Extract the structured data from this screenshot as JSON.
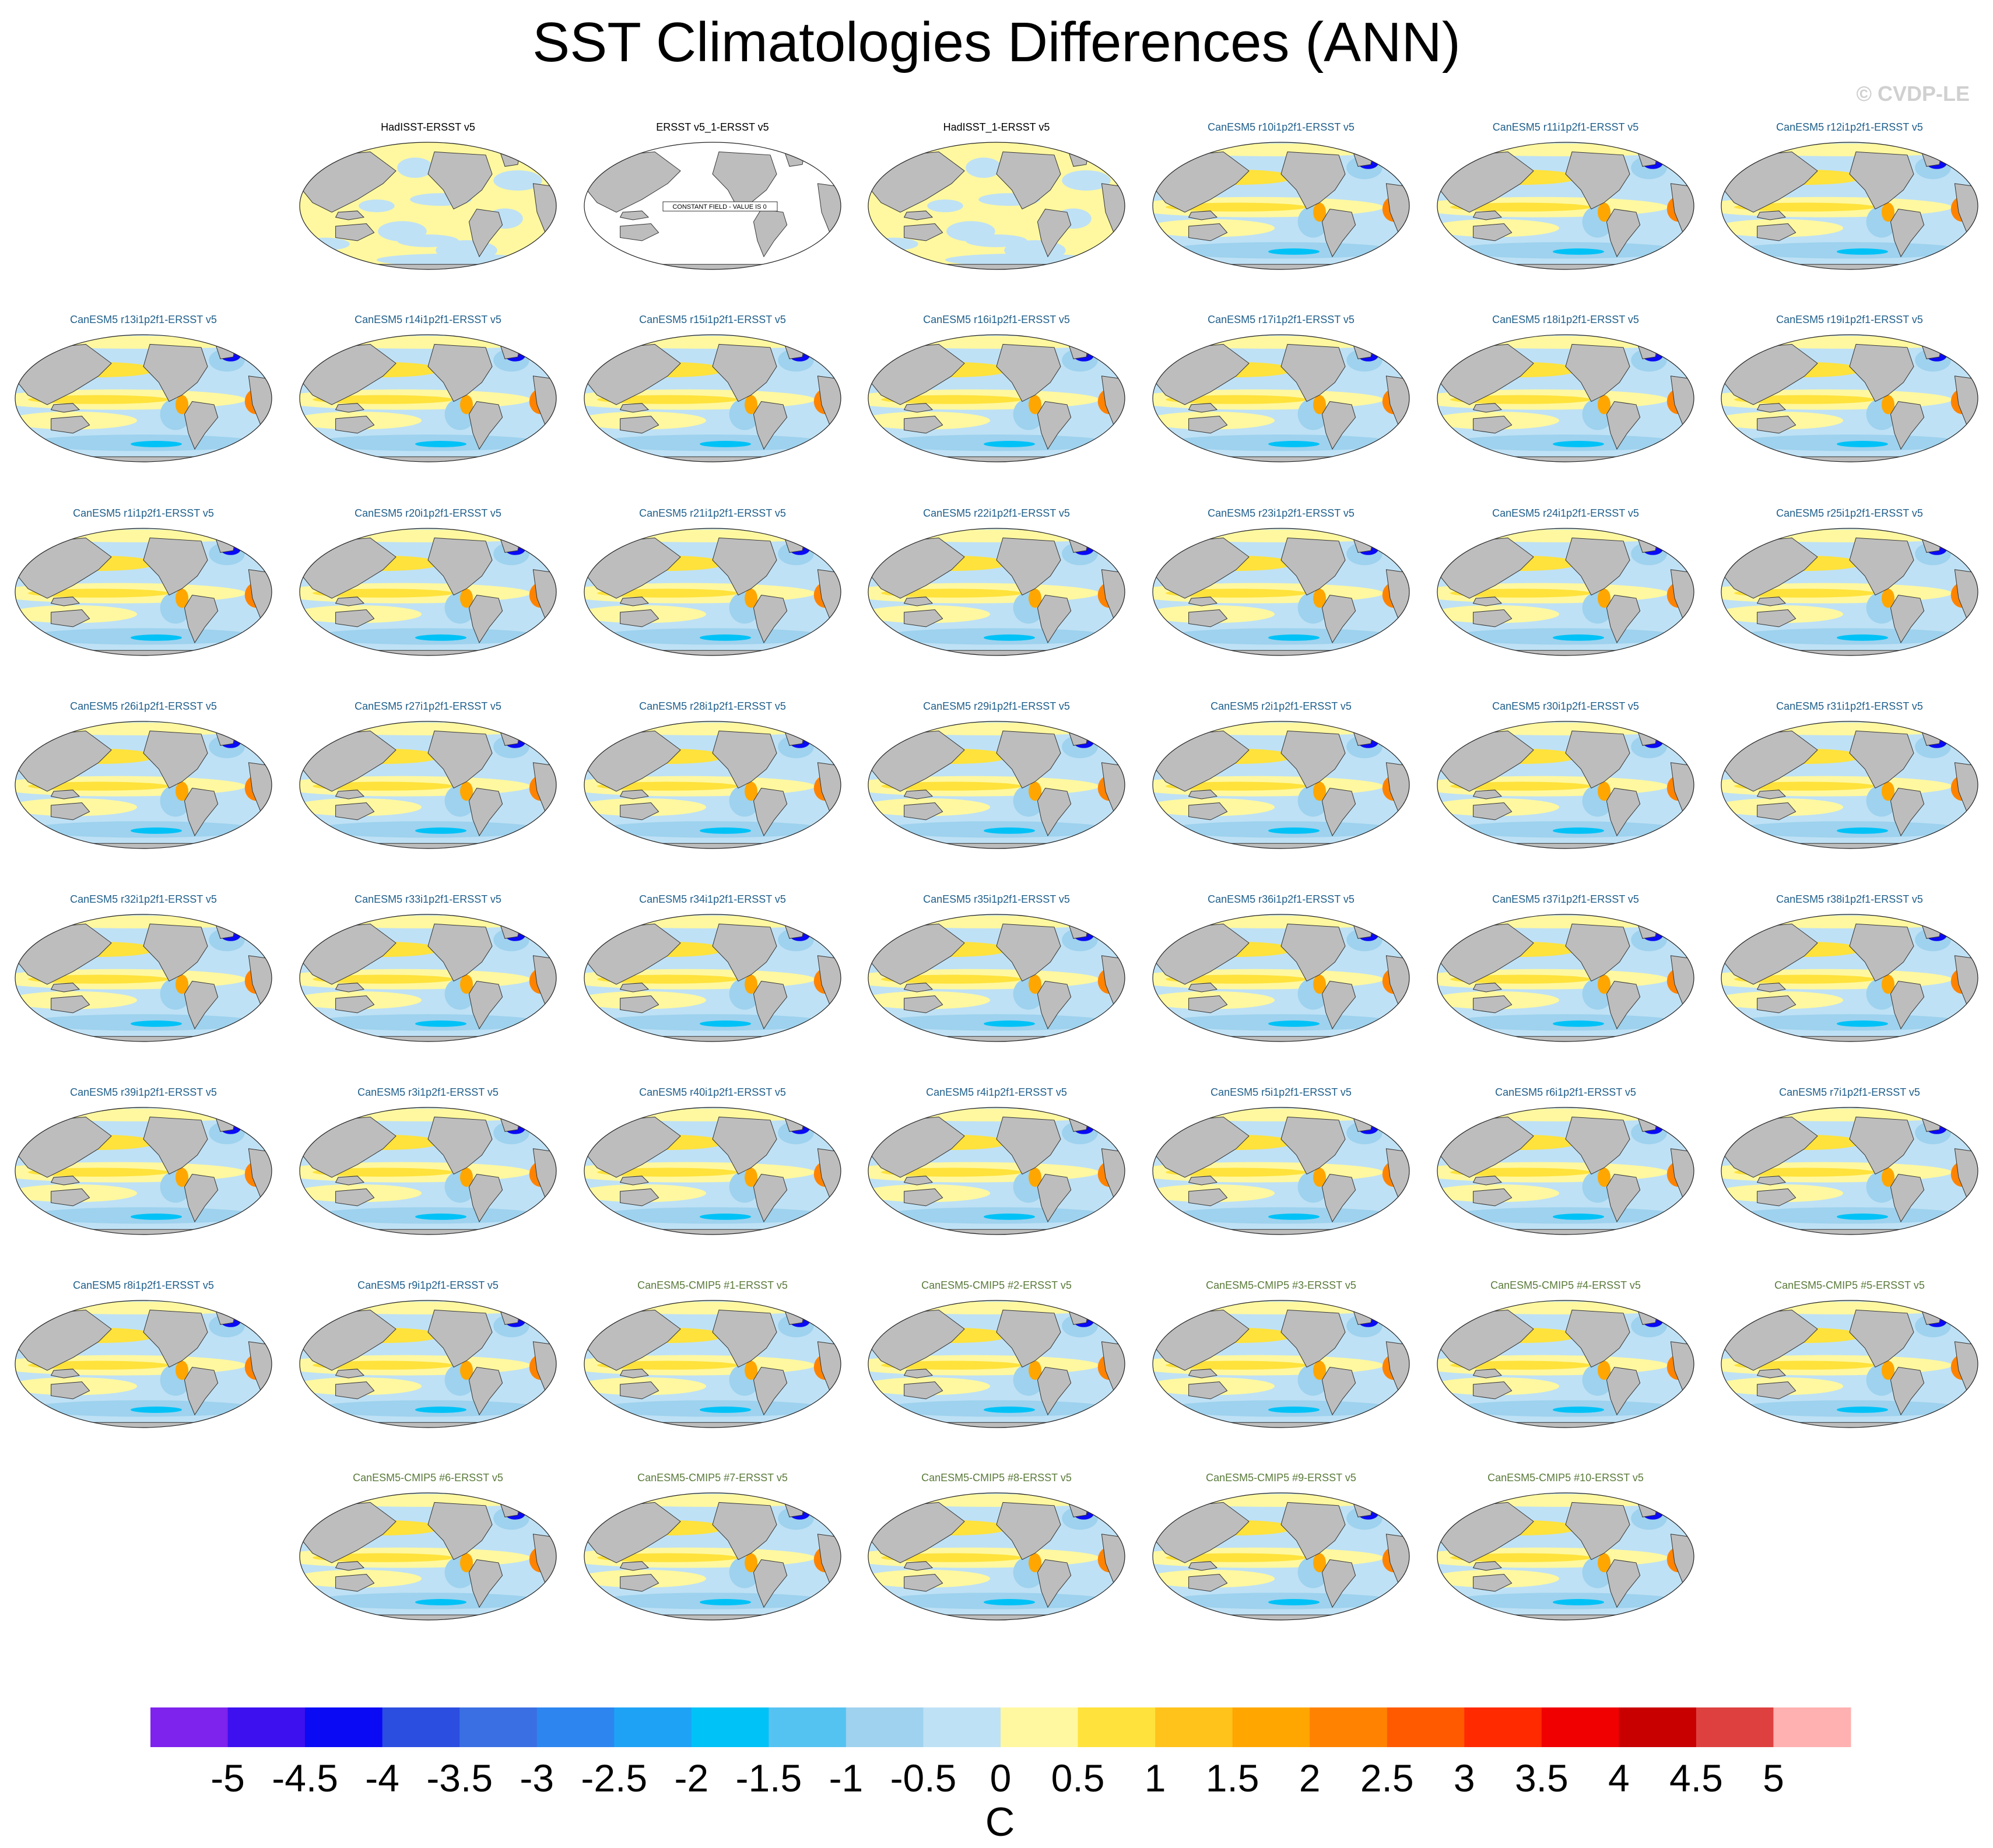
{
  "title": "SST Climatologies Differences (ANN)",
  "copyright": "© CVDP-LE",
  "constant_field_note": "CONSTANT FIELD - VALUE IS 0",
  "colors": {
    "obs_title": "#000000",
    "model_title": "#1f5f8b",
    "cmip_title": "#5a7a3a",
    "land": "#bdbdbd",
    "coast": "#333333"
  },
  "chart_data": {
    "type": "heatmap",
    "colorbar": {
      "ticks": [
        "-5",
        "-4.5",
        "-4",
        "-3.5",
        "-3",
        "-2.5",
        "-2",
        "-1.5",
        "-1",
        "-0.5",
        "0",
        "0.5",
        "1",
        "1.5",
        "2",
        "2.5",
        "3",
        "3.5",
        "4",
        "4.5",
        "5"
      ],
      "colors": [
        "#7e22ee",
        "#3d10f0",
        "#0a0af5",
        "#2b4de0",
        "#3a6fe3",
        "#2d85f0",
        "#1ea2f5",
        "#00c2f7",
        "#55c3f2",
        "#9ed2ee",
        "#bfe1f5",
        "#fff8a0",
        "#ffe23b",
        "#ffc31c",
        "#ffa600",
        "#ff8300",
        "#ff5a00",
        "#ff2a00",
        "#f00000",
        "#c80000",
        "#de4040",
        "#ffb0b0"
      ],
      "label": "C"
    },
    "panels": [
      [
        {
          "slot": 1,
          "title": "HadISST-ERSST v5",
          "kind": "obs"
        },
        {
          "slot": 2,
          "title": "ERSST v5_1-ERSST v5",
          "kind": "constant"
        },
        {
          "slot": 3,
          "title": "HadISST_1-ERSST v5",
          "kind": "obs"
        },
        {
          "slot": 4,
          "title": "CanESM5 r10i1p2f1-ERSST v5",
          "kind": "model"
        },
        {
          "slot": 5,
          "title": "CanESM5 r11i1p2f1-ERSST v5",
          "kind": "model"
        },
        {
          "slot": 6,
          "title": "CanESM5 r12i1p2f1-ERSST v5",
          "kind": "model"
        }
      ],
      [
        {
          "slot": 0,
          "title": "CanESM5 r13i1p2f1-ERSST v5",
          "kind": "model"
        },
        {
          "slot": 1,
          "title": "CanESM5 r14i1p2f1-ERSST v5",
          "kind": "model"
        },
        {
          "slot": 2,
          "title": "CanESM5 r15i1p2f1-ERSST v5",
          "kind": "model"
        },
        {
          "slot": 3,
          "title": "CanESM5 r16i1p2f1-ERSST v5",
          "kind": "model"
        },
        {
          "slot": 4,
          "title": "CanESM5 r17i1p2f1-ERSST v5",
          "kind": "model"
        },
        {
          "slot": 5,
          "title": "CanESM5 r18i1p2f1-ERSST v5",
          "kind": "model"
        },
        {
          "slot": 6,
          "title": "CanESM5 r19i1p2f1-ERSST v5",
          "kind": "model"
        }
      ],
      [
        {
          "slot": 0,
          "title": "CanESM5 r1i1p2f1-ERSST v5",
          "kind": "model"
        },
        {
          "slot": 1,
          "title": "CanESM5 r20i1p2f1-ERSST v5",
          "kind": "model"
        },
        {
          "slot": 2,
          "title": "CanESM5 r21i1p2f1-ERSST v5",
          "kind": "model"
        },
        {
          "slot": 3,
          "title": "CanESM5 r22i1p2f1-ERSST v5",
          "kind": "model"
        },
        {
          "slot": 4,
          "title": "CanESM5 r23i1p2f1-ERSST v5",
          "kind": "model"
        },
        {
          "slot": 5,
          "title": "CanESM5 r24i1p2f1-ERSST v5",
          "kind": "model"
        },
        {
          "slot": 6,
          "title": "CanESM5 r25i1p2f1-ERSST v5",
          "kind": "model"
        }
      ],
      [
        {
          "slot": 0,
          "title": "CanESM5 r26i1p2f1-ERSST v5",
          "kind": "model"
        },
        {
          "slot": 1,
          "title": "CanESM5 r27i1p2f1-ERSST v5",
          "kind": "model"
        },
        {
          "slot": 2,
          "title": "CanESM5 r28i1p2f1-ERSST v5",
          "kind": "model"
        },
        {
          "slot": 3,
          "title": "CanESM5 r29i1p2f1-ERSST v5",
          "kind": "model"
        },
        {
          "slot": 4,
          "title": "CanESM5 r2i1p2f1-ERSST v5",
          "kind": "model"
        },
        {
          "slot": 5,
          "title": "CanESM5 r30i1p2f1-ERSST v5",
          "kind": "model"
        },
        {
          "slot": 6,
          "title": "CanESM5 r31i1p2f1-ERSST v5",
          "kind": "model"
        }
      ],
      [
        {
          "slot": 0,
          "title": "CanESM5 r32i1p2f1-ERSST v5",
          "kind": "model"
        },
        {
          "slot": 1,
          "title": "CanESM5 r33i1p2f1-ERSST v5",
          "kind": "model"
        },
        {
          "slot": 2,
          "title": "CanESM5 r34i1p2f1-ERSST v5",
          "kind": "model"
        },
        {
          "slot": 3,
          "title": "CanESM5 r35i1p2f1-ERSST v5",
          "kind": "model"
        },
        {
          "slot": 4,
          "title": "CanESM5 r36i1p2f1-ERSST v5",
          "kind": "model"
        },
        {
          "slot": 5,
          "title": "CanESM5 r37i1p2f1-ERSST v5",
          "kind": "model"
        },
        {
          "slot": 6,
          "title": "CanESM5 r38i1p2f1-ERSST v5",
          "kind": "model"
        }
      ],
      [
        {
          "slot": 0,
          "title": "CanESM5 r39i1p2f1-ERSST v5",
          "kind": "model"
        },
        {
          "slot": 1,
          "title": "CanESM5 r3i1p2f1-ERSST v5",
          "kind": "model"
        },
        {
          "slot": 2,
          "title": "CanESM5 r40i1p2f1-ERSST v5",
          "kind": "model"
        },
        {
          "slot": 3,
          "title": "CanESM5 r4i1p2f1-ERSST v5",
          "kind": "model"
        },
        {
          "slot": 4,
          "title": "CanESM5 r5i1p2f1-ERSST v5",
          "kind": "model"
        },
        {
          "slot": 5,
          "title": "CanESM5 r6i1p2f1-ERSST v5",
          "kind": "model"
        },
        {
          "slot": 6,
          "title": "CanESM5 r7i1p2f1-ERSST v5",
          "kind": "model"
        }
      ],
      [
        {
          "slot": 0,
          "title": "CanESM5 r8i1p2f1-ERSST v5",
          "kind": "model"
        },
        {
          "slot": 1,
          "title": "CanESM5 r9i1p2f1-ERSST v5",
          "kind": "model"
        },
        {
          "slot": 2,
          "title": "CanESM5-CMIP5 #1-ERSST v5",
          "kind": "cmip"
        },
        {
          "slot": 3,
          "title": "CanESM5-CMIP5 #2-ERSST v5",
          "kind": "cmip"
        },
        {
          "slot": 4,
          "title": "CanESM5-CMIP5 #3-ERSST v5",
          "kind": "cmip"
        },
        {
          "slot": 5,
          "title": "CanESM5-CMIP5 #4-ERSST v5",
          "kind": "cmip"
        },
        {
          "slot": 6,
          "title": "CanESM5-CMIP5 #5-ERSST v5",
          "kind": "cmip"
        }
      ],
      [
        {
          "slot": 1,
          "title": "CanESM5-CMIP5 #6-ERSST v5",
          "kind": "cmip"
        },
        {
          "slot": 2,
          "title": "CanESM5-CMIP5 #7-ERSST v5",
          "kind": "cmip"
        },
        {
          "slot": 3,
          "title": "CanESM5-CMIP5 #8-ERSST v5",
          "kind": "cmip"
        },
        {
          "slot": 4,
          "title": "CanESM5-CMIP5 #9-ERSST v5",
          "kind": "cmip"
        },
        {
          "slot": 5,
          "title": "CanESM5-CMIP5 #10-ERSST v5",
          "kind": "cmip"
        }
      ]
    ]
  }
}
